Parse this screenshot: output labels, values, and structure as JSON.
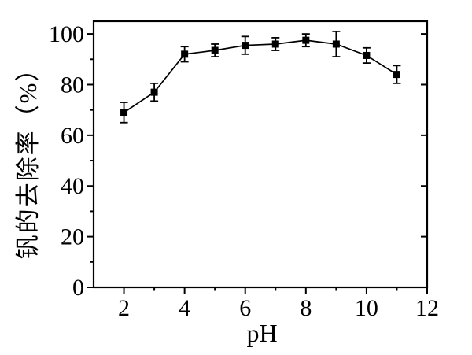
{
  "figure": {
    "background": "#ffffff",
    "axis_color": "#000000",
    "marker_color": "#000000"
  },
  "chart_data": {
    "type": "line",
    "title": "",
    "xlabel": "pH",
    "ylabel": "钒的去除率（%）",
    "x": [
      2,
      3,
      4,
      5,
      6,
      7,
      8,
      9,
      10,
      11
    ],
    "series": [
      {
        "name": "钒的去除率",
        "values": [
          69,
          77,
          92,
          93.5,
          95.5,
          96,
          97.5,
          96,
          91.5,
          84
        ],
        "errors": [
          4,
          3.5,
          3,
          2.5,
          3.5,
          2.5,
          2.5,
          5,
          3,
          3.5
        ],
        "marker": "filled-square",
        "color": "#000000"
      }
    ],
    "xlim": [
      1,
      12
    ],
    "ylim": [
      0,
      105
    ],
    "x_major_ticks": [
      2,
      4,
      6,
      8,
      10,
      12
    ],
    "x_minor_ticks": [
      3,
      5,
      7,
      9,
      11
    ],
    "y_major_ticks": [
      0,
      20,
      40,
      60,
      80,
      100
    ],
    "y_minor_ticks": [
      10,
      30,
      50,
      70,
      90
    ],
    "grid": false,
    "legend": "none",
    "error_bars": true
  }
}
